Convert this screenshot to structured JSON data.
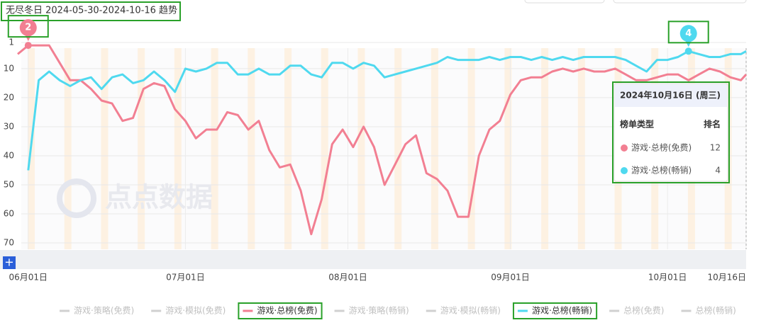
{
  "chart_data": {
    "type": "line",
    "title": "无尽冬日 2024-05-30-2024-10-16 趋势",
    "watermark": "点点数据",
    "x": [
      "2024-05-30",
      "2024-06-01",
      "2024-06-03",
      "2024-06-05",
      "2024-06-07",
      "2024-06-09",
      "2024-06-11",
      "2024-06-13",
      "2024-06-15",
      "2024-06-17",
      "2024-06-19",
      "2024-06-21",
      "2024-06-23",
      "2024-06-25",
      "2024-06-27",
      "2024-06-29",
      "2024-07-01",
      "2024-07-03",
      "2024-07-05",
      "2024-07-07",
      "2024-07-09",
      "2024-07-11",
      "2024-07-13",
      "2024-07-15",
      "2024-07-17",
      "2024-07-19",
      "2024-07-21",
      "2024-07-23",
      "2024-07-25",
      "2024-07-27",
      "2024-07-29",
      "2024-07-31",
      "2024-08-02",
      "2024-08-04",
      "2024-08-06",
      "2024-08-08",
      "2024-08-10",
      "2024-08-12",
      "2024-08-14",
      "2024-08-16",
      "2024-08-18",
      "2024-08-20",
      "2024-08-22",
      "2024-08-24",
      "2024-08-26",
      "2024-08-28",
      "2024-08-30",
      "2024-09-01",
      "2024-09-03",
      "2024-09-05",
      "2024-09-07",
      "2024-09-09",
      "2024-09-11",
      "2024-09-13",
      "2024-09-15",
      "2024-09-17",
      "2024-09-19",
      "2024-09-21",
      "2024-09-23",
      "2024-09-25",
      "2024-09-27",
      "2024-09-29",
      "2024-10-01",
      "2024-10-03",
      "2024-10-05",
      "2024-10-07",
      "2024-10-09",
      "2024-10-11",
      "2024-10-13",
      "2024-10-15",
      "2024-10-16"
    ],
    "series": [
      {
        "name": "游戏·总榜(免费)",
        "color": "#f27f92",
        "values": [
          5,
          2,
          2,
          2,
          8,
          14,
          14,
          17,
          21,
          22,
          28,
          27,
          17,
          15,
          16,
          24,
          28,
          34,
          31,
          31,
          25,
          26,
          31,
          28,
          38,
          44,
          43,
          52,
          67,
          55,
          36,
          31,
          37,
          30,
          37,
          50,
          43,
          36,
          33,
          46,
          48,
          52,
          61,
          61,
          40,
          31,
          28,
          19,
          14,
          13,
          13,
          11,
          10,
          11,
          10,
          11,
          11,
          10,
          12,
          14,
          14,
          13,
          12,
          12,
          14,
          12,
          10,
          11,
          13,
          14,
          12
        ]
      },
      {
        "name": "游戏·总榜(畅销)",
        "color": "#4fd9ef",
        "values": [
          null,
          45,
          14,
          11,
          14,
          16,
          14,
          13,
          17,
          13,
          12,
          15,
          14,
          11,
          14,
          18,
          10,
          11,
          10,
          8,
          8,
          12,
          12,
          10,
          12,
          12,
          9,
          9,
          12,
          13,
          8,
          8,
          10,
          8,
          9,
          13,
          12,
          11,
          10,
          9,
          8,
          6,
          7,
          7,
          7,
          6,
          7,
          6,
          6,
          7,
          6,
          7,
          6,
          7,
          6,
          6,
          6,
          6,
          7,
          9,
          11,
          7,
          7,
          6,
          4,
          5,
          6,
          6,
          5,
          5,
          4
        ]
      }
    ],
    "legend_inactive": [
      "游戏·策略(免费)",
      "游戏·模拟(免费)",
      "游戏·策略(畅销)",
      "游戏·模拟(畅销)",
      "总榜(免费)",
      "总榜(畅销)"
    ],
    "xlim": [
      "2024-05-30",
      "2024-10-16"
    ],
    "xticks": [
      {
        "value": "2024-06-01",
        "label": "06月01日"
      },
      {
        "value": "2024-07-01",
        "label": "07月01日"
      },
      {
        "value": "2024-08-01",
        "label": "08月01日"
      },
      {
        "value": "2024-09-01",
        "label": "09月01日"
      },
      {
        "value": "2024-10-01",
        "label": "10月01日"
      },
      {
        "value": "2024-10-16",
        "label": "10月16日"
      }
    ],
    "ylim": [
      1,
      70
    ],
    "y_inverted": true,
    "yticks": [
      1,
      10,
      20,
      30,
      40,
      50,
      60,
      70
    ],
    "grid": true,
    "mark_min": true,
    "tooltip": {
      "title": "2024年10月16日 (周三)",
      "header": [
        "榜单类型",
        "排名"
      ]
    }
  }
}
